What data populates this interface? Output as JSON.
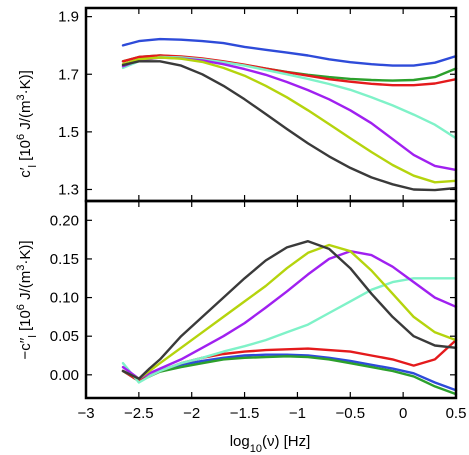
{
  "chart_data": [
    {
      "type": "line",
      "panel": "top",
      "ylabel_main": "c′",
      "ylabel_sub": "l",
      "ylabel_rest": " [10",
      "ylabel_sup": "6",
      "ylabel_unit": " J/(m",
      "ylabel_sup2": "3",
      "ylabel_end": "·K)]",
      "xlim": [
        -3,
        0.5
      ],
      "ylim": [
        1.26,
        1.93
      ],
      "yticks": [
        1.3,
        1.5,
        1.7,
        1.9
      ],
      "ytick_labels": [
        "1.3",
        "1.5",
        "1.7",
        "1.9"
      ],
      "x": [
        -2.65,
        -2.5,
        -2.3,
        -2.1,
        -1.9,
        -1.7,
        -1.5,
        -1.3,
        -1.1,
        -0.9,
        -0.7,
        -0.5,
        -0.3,
        -0.1,
        0.1,
        0.3,
        0.5
      ],
      "series": [
        {
          "color": "#2e4bd9",
          "values": [
            1.8,
            1.815,
            1.822,
            1.82,
            1.815,
            1.808,
            1.795,
            1.785,
            1.775,
            1.765,
            1.752,
            1.742,
            1.735,
            1.73,
            1.73,
            1.74,
            1.763
          ]
        },
        {
          "color": "#2ca02c",
          "values": [
            1.745,
            1.76,
            1.765,
            1.76,
            1.752,
            1.742,
            1.732,
            1.72,
            1.708,
            1.698,
            1.69,
            1.684,
            1.68,
            1.678,
            1.68,
            1.69,
            1.72
          ]
        },
        {
          "color": "#e41a1c",
          "values": [
            1.745,
            1.76,
            1.765,
            1.762,
            1.755,
            1.745,
            1.733,
            1.72,
            1.707,
            1.695,
            1.683,
            1.674,
            1.667,
            1.662,
            1.662,
            1.668,
            1.683
          ]
        },
        {
          "color": "#7ff2c8",
          "values": [
            1.722,
            1.745,
            1.76,
            1.758,
            1.752,
            1.742,
            1.73,
            1.715,
            1.7,
            1.684,
            1.666,
            1.646,
            1.62,
            1.592,
            1.56,
            1.525,
            1.478
          ]
        },
        {
          "color": "#a020f0",
          "values": [
            1.728,
            1.748,
            1.758,
            1.755,
            1.748,
            1.735,
            1.718,
            1.698,
            1.673,
            1.645,
            1.613,
            1.575,
            1.53,
            1.475,
            1.42,
            1.382,
            1.368
          ]
        },
        {
          "color": "#b5d40d",
          "values": [
            1.735,
            1.752,
            1.758,
            1.754,
            1.743,
            1.722,
            1.695,
            1.66,
            1.62,
            1.575,
            1.527,
            1.478,
            1.43,
            1.385,
            1.348,
            1.325,
            1.33
          ]
        },
        {
          "color": "#3a3a3a",
          "values": [
            1.732,
            1.745,
            1.745,
            1.73,
            1.7,
            1.66,
            1.613,
            1.562,
            1.51,
            1.46,
            1.415,
            1.375,
            1.342,
            1.318,
            1.3,
            1.298,
            1.305
          ]
        }
      ]
    },
    {
      "type": "line",
      "panel": "bottom",
      "ylabel_main": "−c′′",
      "ylabel_sub": "l",
      "ylabel_rest": " [10",
      "ylabel_sup": "6",
      "ylabel_unit": " J/(m",
      "ylabel_sup2": "3",
      "ylabel_end": "·K)]",
      "xlim": [
        -3,
        0.5
      ],
      "ylim": [
        -0.03,
        0.225
      ],
      "yticks": [
        0.0,
        0.05,
        0.1,
        0.15,
        0.2
      ],
      "ytick_labels": [
        "0.00",
        "0.05",
        "0.10",
        "0.15",
        "0.20"
      ],
      "xticks": [
        -3,
        -2.5,
        -2,
        -1.5,
        -1,
        -0.5,
        0,
        0.5
      ],
      "xtick_labels": [
        "−3",
        "−2.5",
        "−2",
        "−1.5",
        "−1",
        "−0.5",
        "0",
        "0.5"
      ],
      "xlabel_main": "log",
      "xlabel_sub": "10",
      "xlabel_rest": "(ν) [Hz]",
      "x": [
        -2.65,
        -2.5,
        -2.4,
        -2.3,
        -2.1,
        -1.9,
        -1.7,
        -1.5,
        -1.3,
        -1.1,
        -0.9,
        -0.7,
        -0.5,
        -0.3,
        -0.1,
        0.1,
        0.3,
        0.5
      ],
      "series": [
        {
          "color": "#2e4bd9",
          "values": [
            0.005,
            -0.008,
            -0.002,
            0.005,
            0.013,
            0.018,
            0.022,
            0.025,
            0.026,
            0.026,
            0.025,
            0.022,
            0.018,
            0.013,
            0.008,
            0.002,
            -0.01,
            -0.02
          ]
        },
        {
          "color": "#2ca02c",
          "values": [
            0.005,
            -0.008,
            -0.002,
            0.004,
            0.01,
            0.015,
            0.02,
            0.022,
            0.023,
            0.024,
            0.023,
            0.02,
            0.015,
            0.01,
            0.005,
            -0.002,
            -0.015,
            -0.025
          ]
        },
        {
          "color": "#e41a1c",
          "values": [
            0.005,
            -0.008,
            -0.002,
            0.005,
            0.015,
            0.022,
            0.027,
            0.03,
            0.032,
            0.033,
            0.034,
            0.032,
            0.03,
            0.025,
            0.02,
            0.012,
            0.02,
            0.045
          ]
        },
        {
          "color": "#7ff2c8",
          "values": [
            0.015,
            -0.01,
            -0.002,
            0.005,
            0.015,
            0.022,
            0.03,
            0.037,
            0.045,
            0.055,
            0.065,
            0.08,
            0.095,
            0.11,
            0.12,
            0.125,
            0.125,
            0.125
          ]
        },
        {
          "color": "#a020f0",
          "values": [
            0.01,
            -0.005,
            0.002,
            0.008,
            0.02,
            0.035,
            0.05,
            0.067,
            0.087,
            0.108,
            0.13,
            0.15,
            0.16,
            0.155,
            0.14,
            0.12,
            0.1,
            0.088
          ]
        },
        {
          "color": "#b5d40d",
          "values": [
            0.005,
            -0.005,
            0.005,
            0.015,
            0.035,
            0.055,
            0.075,
            0.095,
            0.115,
            0.138,
            0.158,
            0.168,
            0.16,
            0.135,
            0.105,
            0.075,
            0.055,
            0.045
          ]
        },
        {
          "color": "#3a3a3a",
          "values": [
            0.005,
            -0.005,
            0.008,
            0.02,
            0.05,
            0.075,
            0.1,
            0.125,
            0.148,
            0.165,
            0.173,
            0.163,
            0.138,
            0.105,
            0.075,
            0.05,
            0.038,
            0.035
          ]
        }
      ]
    }
  ]
}
